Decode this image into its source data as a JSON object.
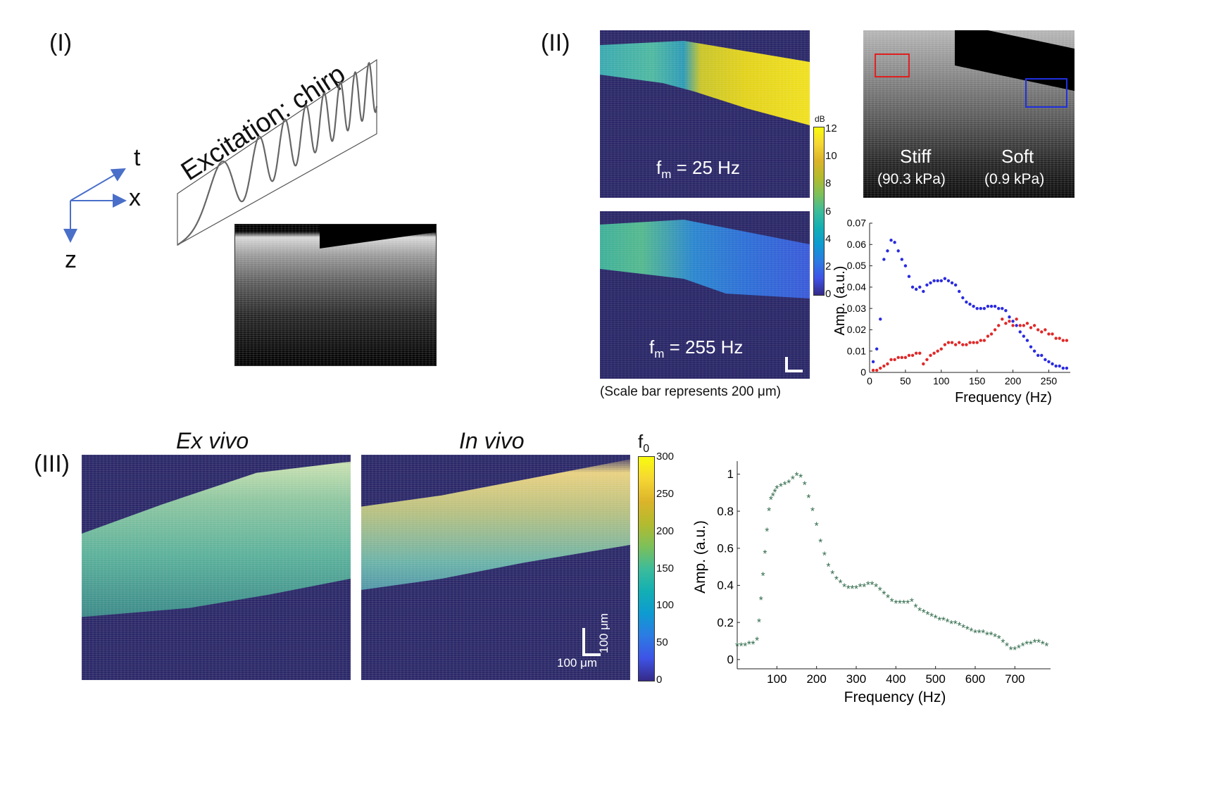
{
  "panels": {
    "p1": {
      "label": "(I)",
      "axes": {
        "t": "t",
        "x": "x",
        "z": "z"
      },
      "excitation_title": "Excitation: chirp"
    },
    "p2": {
      "label": "(II)",
      "map_top_label": "f",
      "map_top_sub": "m",
      "map_top_value": " = 25 Hz",
      "map_bottom_label": "f",
      "map_bottom_sub": "m",
      "map_bottom_value": " = 255 Hz",
      "colorbar_unit": "dB",
      "colorbar_ticks": [
        "12",
        "10",
        "8",
        "6",
        "4",
        "2",
        "0"
      ],
      "scale_caption": "(Scale bar represents 200 μm)",
      "stiff_label": "Stiff",
      "stiff_value": "(90.3 kPa)",
      "soft_label": "Soft",
      "soft_value": "(0.9 kPa)",
      "roi_colors": {
        "stiff": "#e02020",
        "soft": "#2030e0"
      }
    },
    "p3": {
      "label": "(III)",
      "ex_vivo_title": "Ex vivo",
      "in_vivo_title": "In vivo",
      "colorbar_label": "f",
      "colorbar_sub": "0",
      "colorbar_ticks": [
        "300",
        "250",
        "200",
        "150",
        "100",
        "50",
        "0"
      ],
      "scalebar_h": "100 μm",
      "scalebar_v": "100 μm"
    }
  },
  "chart_data": [
    {
      "type": "scatter",
      "xlabel": "Frequency (Hz)",
      "ylabel": "Amp. (a.u.)",
      "xlim": [
        0,
        280
      ],
      "ylim": [
        0,
        0.07
      ],
      "xticks": [
        0,
        50,
        100,
        150,
        200,
        250
      ],
      "yticks": [
        0,
        0.01,
        0.02,
        0.03,
        0.04,
        0.05,
        0.06,
        0.07
      ],
      "series": [
        {
          "color": "#2a2ae0",
          "x": [
            5,
            10,
            15,
            20,
            25,
            30,
            35,
            40,
            45,
            50,
            55,
            60,
            65,
            70,
            75,
            80,
            85,
            90,
            95,
            100,
            105,
            110,
            115,
            120,
            125,
            130,
            135,
            140,
            145,
            150,
            155,
            160,
            165,
            170,
            175,
            180,
            185,
            190,
            195,
            200,
            205,
            210,
            215,
            220,
            225,
            230,
            235,
            240,
            245,
            250,
            255,
            260,
            265,
            270,
            275
          ],
          "y": [
            0.005,
            0.011,
            0.025,
            0.053,
            0.057,
            0.062,
            0.061,
            0.057,
            0.053,
            0.05,
            0.045,
            0.04,
            0.039,
            0.04,
            0.038,
            0.041,
            0.042,
            0.043,
            0.043,
            0.043,
            0.044,
            0.043,
            0.042,
            0.041,
            0.038,
            0.035,
            0.033,
            0.032,
            0.031,
            0.03,
            0.03,
            0.03,
            0.031,
            0.031,
            0.031,
            0.03,
            0.03,
            0.029,
            0.026,
            0.024,
            0.022,
            0.019,
            0.017,
            0.015,
            0.012,
            0.01,
            0.008,
            0.008,
            0.006,
            0.005,
            0.004,
            0.003,
            0.003,
            0.002,
            0.002
          ]
        },
        {
          "color": "#e02828",
          "x": [
            5,
            10,
            15,
            20,
            25,
            30,
            35,
            40,
            45,
            50,
            55,
            60,
            65,
            70,
            75,
            80,
            85,
            90,
            95,
            100,
            105,
            110,
            115,
            120,
            125,
            130,
            135,
            140,
            145,
            150,
            155,
            160,
            165,
            170,
            175,
            180,
            185,
            190,
            195,
            200,
            205,
            210,
            215,
            220,
            225,
            230,
            235,
            240,
            245,
            250,
            255,
            260,
            265,
            270,
            275
          ],
          "y": [
            0.001,
            0.001,
            0.002,
            0.003,
            0.004,
            0.006,
            0.006,
            0.007,
            0.007,
            0.007,
            0.008,
            0.008,
            0.009,
            0.009,
            0.004,
            0.006,
            0.008,
            0.009,
            0.01,
            0.011,
            0.013,
            0.014,
            0.014,
            0.013,
            0.014,
            0.013,
            0.013,
            0.014,
            0.014,
            0.014,
            0.015,
            0.015,
            0.017,
            0.018,
            0.02,
            0.022,
            0.025,
            0.023,
            0.024,
            0.022,
            0.025,
            0.022,
            0.022,
            0.023,
            0.021,
            0.022,
            0.02,
            0.019,
            0.02,
            0.018,
            0.018,
            0.016,
            0.016,
            0.015,
            0.015
          ]
        }
      ]
    },
    {
      "type": "scatter",
      "xlabel": "Frequency (Hz)",
      "ylabel": "Amp. (a.u.)",
      "xlim": [
        0,
        790
      ],
      "ylim": [
        -0.05,
        1.07
      ],
      "xticks": [
        100,
        200,
        300,
        400,
        500,
        600,
        700
      ],
      "yticks": [
        0,
        0.2,
        0.4,
        0.6,
        0.8,
        1
      ],
      "series": [
        {
          "color": "#2f6a4a",
          "x": [
            0,
            10,
            20,
            30,
            40,
            50,
            55,
            60,
            65,
            70,
            75,
            80,
            85,
            90,
            95,
            100,
            110,
            120,
            130,
            140,
            150,
            160,
            170,
            180,
            190,
            200,
            210,
            220,
            230,
            240,
            250,
            260,
            270,
            280,
            290,
            300,
            310,
            320,
            330,
            340,
            350,
            360,
            370,
            380,
            390,
            400,
            410,
            420,
            430,
            440,
            450,
            460,
            470,
            480,
            490,
            500,
            510,
            520,
            530,
            540,
            550,
            560,
            570,
            580,
            590,
            600,
            610,
            620,
            630,
            640,
            650,
            660,
            670,
            680,
            690,
            700,
            710,
            720,
            730,
            740,
            750,
            760,
            770,
            780
          ],
          "y": [
            0.07,
            0.07,
            0.07,
            0.08,
            0.08,
            0.1,
            0.2,
            0.32,
            0.45,
            0.57,
            0.69,
            0.8,
            0.86,
            0.88,
            0.9,
            0.92,
            0.93,
            0.94,
            0.95,
            0.97,
            0.99,
            0.98,
            0.94,
            0.87,
            0.8,
            0.72,
            0.63,
            0.56,
            0.5,
            0.46,
            0.43,
            0.41,
            0.39,
            0.38,
            0.38,
            0.38,
            0.39,
            0.39,
            0.4,
            0.4,
            0.39,
            0.37,
            0.35,
            0.33,
            0.31,
            0.3,
            0.3,
            0.3,
            0.3,
            0.31,
            0.28,
            0.26,
            0.25,
            0.24,
            0.23,
            0.22,
            0.21,
            0.21,
            0.2,
            0.19,
            0.19,
            0.18,
            0.17,
            0.16,
            0.15,
            0.14,
            0.14,
            0.14,
            0.13,
            0.13,
            0.12,
            0.11,
            0.09,
            0.07,
            0.05,
            0.05,
            0.06,
            0.07,
            0.08,
            0.08,
            0.09,
            0.09,
            0.08,
            0.07
          ]
        }
      ]
    }
  ]
}
